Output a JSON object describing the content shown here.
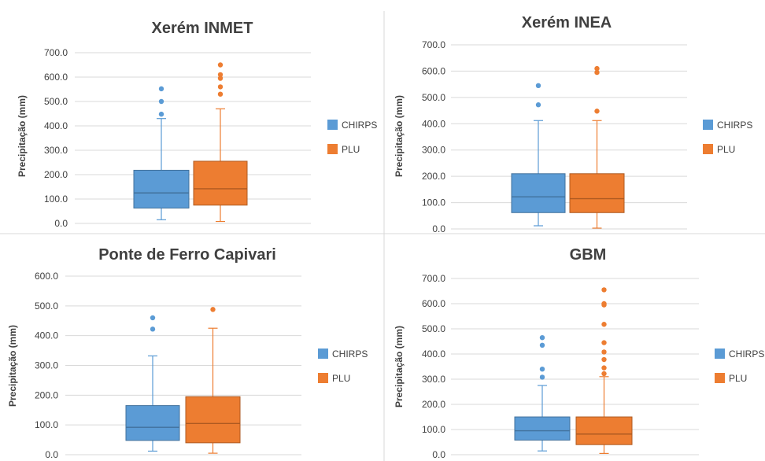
{
  "chart_data": [
    {
      "type": "box",
      "title": "Xerém INMET",
      "ylabel": "Precipitação (mm)",
      "xlabel": "",
      "ylim": [
        0,
        700
      ],
      "yticks": [
        0,
        100,
        200,
        300,
        400,
        500,
        600,
        700
      ],
      "ytick_labels": [
        "0.0",
        "100.0",
        "200.0",
        "300.0",
        "400.0",
        "500.0",
        "600.0",
        "700.0"
      ],
      "legend": [
        "CHIRPS",
        "PLU"
      ],
      "legend_position": "right",
      "grid": true,
      "series": [
        {
          "name": "CHIRPS",
          "color": "#5b9bd5",
          "min": 15,
          "q1": 63,
          "median": 125,
          "q3": 218,
          "max": 430,
          "outliers": [
            448,
            500,
            552
          ]
        },
        {
          "name": "PLU",
          "color": "#ed7d31",
          "min": 8,
          "q1": 75,
          "median": 142,
          "q3": 255,
          "max": 470,
          "outliers": [
            530,
            560,
            595,
            610,
            650
          ]
        }
      ]
    },
    {
      "type": "box",
      "title": "Xerém INEA",
      "ylabel": "Precipitação (mm)",
      "xlabel": "",
      "ylim": [
        0,
        700
      ],
      "yticks": [
        0,
        100,
        200,
        300,
        400,
        500,
        600,
        700
      ],
      "ytick_labels": [
        "0.0",
        "100.0",
        "200.0",
        "300.0",
        "400.0",
        "500.0",
        "600.0",
        "700.0"
      ],
      "legend": [
        "CHIRPS",
        "PLU"
      ],
      "legend_position": "right",
      "grid": true,
      "series": [
        {
          "name": "CHIRPS",
          "color": "#5b9bd5",
          "min": 12,
          "q1": 62,
          "median": 122,
          "q3": 210,
          "max": 412,
          "outliers": [
            472,
            545
          ]
        },
        {
          "name": "PLU",
          "color": "#ed7d31",
          "min": 3,
          "q1": 62,
          "median": 115,
          "q3": 210,
          "max": 412,
          "outliers": [
            448,
            595,
            610
          ]
        }
      ]
    },
    {
      "type": "box",
      "title": "Ponte de Ferro Capivari",
      "ylabel": "Precipitação (mm)",
      "xlabel": "",
      "ylim": [
        0,
        600
      ],
      "yticks": [
        0,
        100,
        200,
        300,
        400,
        500,
        600
      ],
      "ytick_labels": [
        "0.0",
        "100.0",
        "200.0",
        "300.0",
        "400.0",
        "500.0",
        "600.0"
      ],
      "legend": [
        "CHIRPS",
        "PLU"
      ],
      "legend_position": "right",
      "grid": true,
      "series": [
        {
          "name": "CHIRPS",
          "color": "#5b9bd5",
          "min": 12,
          "q1": 48,
          "median": 92,
          "q3": 165,
          "max": 332,
          "outliers": [
            422,
            460
          ]
        },
        {
          "name": "PLU",
          "color": "#ed7d31",
          "min": 5,
          "q1": 40,
          "median": 105,
          "q3": 195,
          "max": 425,
          "outliers": [
            488
          ]
        }
      ]
    },
    {
      "type": "box",
      "title": "GBM",
      "ylabel": "Precipitação (mm)",
      "xlabel": "",
      "ylim": [
        0,
        700
      ],
      "yticks": [
        0,
        100,
        200,
        300,
        400,
        500,
        600,
        700
      ],
      "ytick_labels": [
        "0.0",
        "100.0",
        "200.0",
        "300.0",
        "400.0",
        "500.0",
        "600.0",
        "700.0"
      ],
      "legend": [
        "CHIRPS",
        "PLU"
      ],
      "legend_position": "right",
      "grid": true,
      "series": [
        {
          "name": "CHIRPS",
          "color": "#5b9bd5",
          "min": 15,
          "q1": 58,
          "median": 95,
          "q3": 150,
          "max": 275,
          "outliers": [
            308,
            340,
            435,
            465
          ]
        },
        {
          "name": "PLU",
          "color": "#ed7d31",
          "min": 5,
          "q1": 40,
          "median": 82,
          "q3": 150,
          "max": 310,
          "outliers": [
            322,
            345,
            378,
            408,
            445,
            518,
            595,
            600,
            655
          ]
        }
      ]
    }
  ]
}
